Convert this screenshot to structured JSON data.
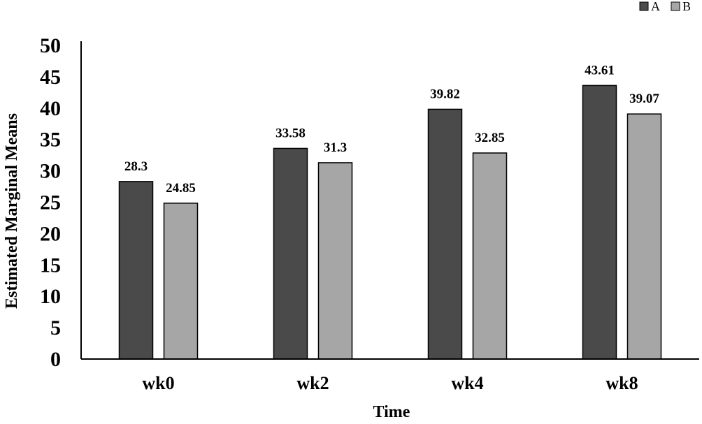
{
  "chart_data": {
    "type": "bar",
    "categories": [
      "wk0",
      "wk2",
      "wk4",
      "wk8"
    ],
    "series": [
      {
        "name": "A",
        "values": [
          28.3,
          33.58,
          39.82,
          43.61
        ],
        "labels": [
          "28.3",
          "33.58",
          "39.82",
          "43.61"
        ],
        "color": "#4a4a4a"
      },
      {
        "name": "B",
        "values": [
          24.85,
          31.3,
          32.85,
          39.07
        ],
        "labels": [
          "24.85",
          "31.3",
          "32.85",
          "39.07"
        ],
        "color": "#a6a6a6"
      }
    ],
    "xlabel": "Time",
    "ylabel": "Estimated Marginal Means",
    "ylim": [
      0,
      50
    ],
    "yticks": [
      "0",
      "5",
      "10",
      "15",
      "20",
      "25",
      "30",
      "35",
      "40",
      "45",
      "50"
    ],
    "grid": false,
    "legend": "top-right"
  }
}
